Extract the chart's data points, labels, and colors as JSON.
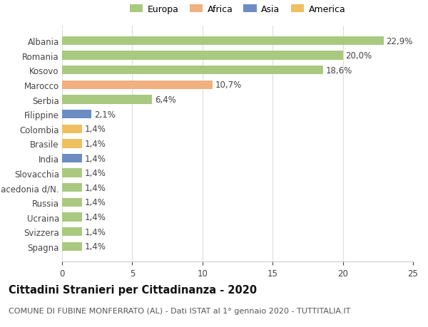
{
  "categories": [
    "Spagna",
    "Svizzera",
    "Ucraina",
    "Russia",
    "Macedonia d/N.",
    "Slovacchia",
    "India",
    "Brasile",
    "Colombia",
    "Filippine",
    "Serbia",
    "Marocco",
    "Kosovo",
    "Romania",
    "Albania"
  ],
  "values": [
    1.4,
    1.4,
    1.4,
    1.4,
    1.4,
    1.4,
    1.4,
    1.4,
    1.4,
    2.1,
    6.4,
    10.7,
    18.6,
    20.0,
    22.9
  ],
  "colors": [
    "#a8c97f",
    "#a8c97f",
    "#a8c97f",
    "#a8c97f",
    "#a8c97f",
    "#a8c97f",
    "#6b8dc4",
    "#f0c060",
    "#f0c060",
    "#6b8dc4",
    "#a8c97f",
    "#f0b080",
    "#a8c97f",
    "#a8c97f",
    "#a8c97f"
  ],
  "labels": [
    "1,4%",
    "1,4%",
    "1,4%",
    "1,4%",
    "1,4%",
    "1,4%",
    "1,4%",
    "1,4%",
    "1,4%",
    "2,1%",
    "6,4%",
    "10,7%",
    "18,6%",
    "20,0%",
    "22,9%"
  ],
  "legend_labels": [
    "Europa",
    "Africa",
    "Asia",
    "America"
  ],
  "legend_colors": [
    "#a8c97f",
    "#f0b080",
    "#6b8dc4",
    "#f0c060"
  ],
  "title": "Cittadini Stranieri per Cittadinanza - 2020",
  "subtitle": "COMUNE DI FUBINE MONFERRATO (AL) - Dati ISTAT al 1° gennaio 2020 - TUTTITALIA.IT",
  "xlim": [
    0,
    25
  ],
  "xticks": [
    0,
    5,
    10,
    15,
    20,
    25
  ],
  "background_color": "#ffffff",
  "bar_height": 0.6,
  "title_fontsize": 10.5,
  "subtitle_fontsize": 8,
  "tick_fontsize": 8.5,
  "label_fontsize": 8.5
}
